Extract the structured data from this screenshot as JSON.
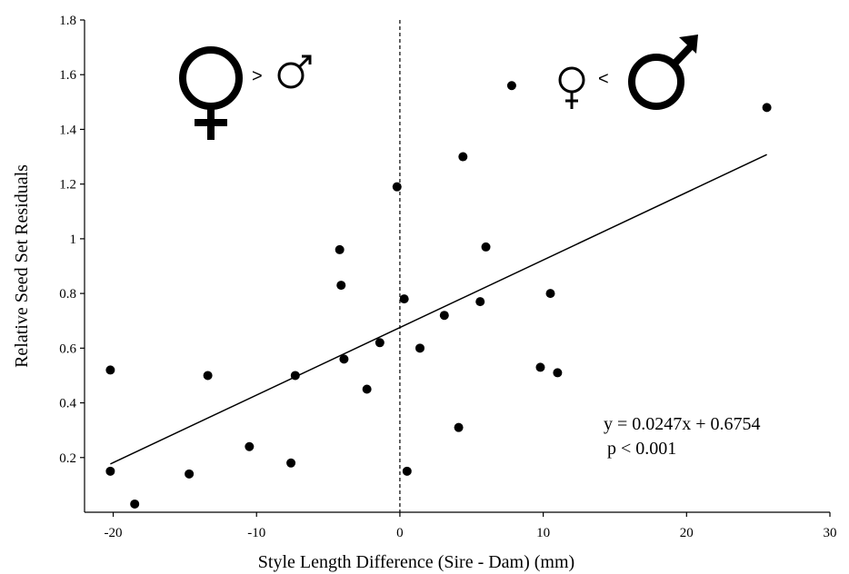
{
  "chart_data": {
    "type": "scatter",
    "xlabel": "Style Length Difference (Sire - Dam) (mm)",
    "ylabel": "Relative Seed Set Residuals",
    "xlim": [
      -22,
      30
    ],
    "ylim": [
      0,
      1.8
    ],
    "xticks": [
      -20,
      -10,
      0,
      10,
      20,
      30
    ],
    "xtick_labels": [
      "-20",
      "-10",
      "0",
      "10",
      "20",
      "30"
    ],
    "yticks": [
      0.2,
      0.4,
      0.6,
      0.8,
      1.0,
      1.2,
      1.4,
      1.6,
      1.8
    ],
    "ytick_labels": [
      "0.2",
      "0.4",
      "0.6",
      "0.8",
      "1",
      "1.2",
      "1.4",
      "1.6",
      "1.8"
    ],
    "grid": false,
    "reference_line": {
      "x": 0,
      "style": "dashed"
    },
    "points": [
      {
        "x": -20.2,
        "y": 0.52
      },
      {
        "x": -20.2,
        "y": 0.15
      },
      {
        "x": -18.5,
        "y": 0.03
      },
      {
        "x": -14.7,
        "y": 0.14
      },
      {
        "x": -13.4,
        "y": 0.5
      },
      {
        "x": -10.5,
        "y": 0.24
      },
      {
        "x": -7.6,
        "y": 0.18
      },
      {
        "x": -7.3,
        "y": 0.5
      },
      {
        "x": -4.2,
        "y": 0.96
      },
      {
        "x": -4.1,
        "y": 0.83
      },
      {
        "x": -3.9,
        "y": 0.56
      },
      {
        "x": -2.3,
        "y": 0.45
      },
      {
        "x": -1.4,
        "y": 0.62
      },
      {
        "x": -0.2,
        "y": 1.19
      },
      {
        "x": 0.3,
        "y": 0.78
      },
      {
        "x": 0.5,
        "y": 0.15
      },
      {
        "x": 1.4,
        "y": 0.6
      },
      {
        "x": 3.1,
        "y": 0.72
      },
      {
        "x": 4.1,
        "y": 0.31
      },
      {
        "x": 4.4,
        "y": 1.3
      },
      {
        "x": 5.6,
        "y": 0.77
      },
      {
        "x": 6.0,
        "y": 0.97
      },
      {
        "x": 7.8,
        "y": 1.56
      },
      {
        "x": 9.8,
        "y": 0.53
      },
      {
        "x": 10.5,
        "y": 0.8
      },
      {
        "x": 11.0,
        "y": 0.51
      },
      {
        "x": 25.6,
        "y": 1.48
      }
    ],
    "trendline": {
      "slope": 0.0247,
      "intercept": 0.6754,
      "x_range": [
        -20.2,
        25.6
      ]
    },
    "annotations": {
      "equation": "y = 0.0247x + 0.6754",
      "p_value": "p < 0.001",
      "left_comparison": ">",
      "right_comparison": "<"
    }
  }
}
